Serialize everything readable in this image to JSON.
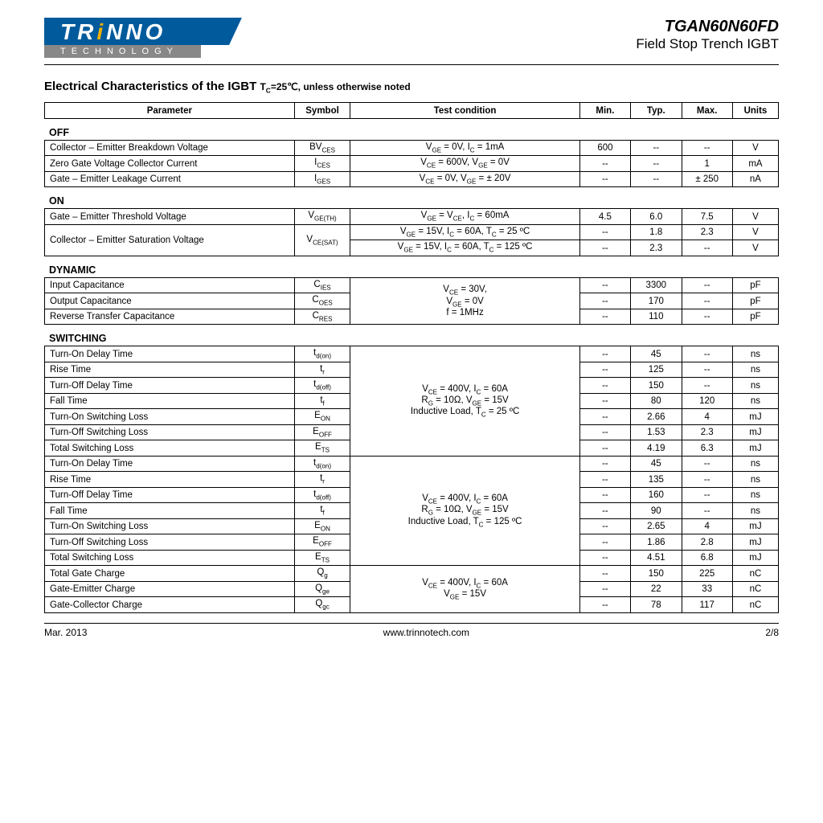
{
  "header": {
    "logo_main": "TRiNNO",
    "logo_sub": "TECHNOLOGY",
    "part_number": "TGAN60N60FD",
    "subtitle": "Field Stop Trench IGBT"
  },
  "section_title": "Electrical Characteristics of the IGBT",
  "section_condition": "T_C=25℃, unless otherwise noted",
  "columns": {
    "parameter": "Parameter",
    "symbol": "Symbol",
    "condition": "Test condition",
    "min": "Min.",
    "typ": "Typ.",
    "max": "Max.",
    "units": "Units"
  },
  "groups": {
    "off": {
      "label": "OFF",
      "rows": [
        {
          "param": "Collector – Emitter Breakdown Voltage",
          "sym": "BV",
          "sub": "CES",
          "cond": "V_GE = 0V, I_C = 1mA",
          "min": "600",
          "typ": "--",
          "max": "--",
          "unit": "V"
        },
        {
          "param": "Zero Gate Voltage Collector Current",
          "sym": "I",
          "sub": "CES",
          "cond": "V_CE = 600V, V_GE = 0V",
          "min": "--",
          "typ": "--",
          "max": "1",
          "unit": "mA"
        },
        {
          "param": "Gate – Emitter Leakage Current",
          "sym": "I",
          "sub": "GES",
          "cond": "V_CE = 0V, V_GE = ± 20V",
          "min": "--",
          "typ": "--",
          "max": "± 250",
          "unit": "nA"
        }
      ]
    },
    "on": {
      "label": "ON",
      "rows": [
        {
          "param": "Gate – Emitter Threshold Voltage",
          "sym": "V",
          "sub": "GE(TH)",
          "cond": "V_GE = V_CE, I_C = 60mA",
          "min": "4.5",
          "typ": "6.0",
          "max": "7.5",
          "unit": "V"
        },
        {
          "param": "Collector – Emitter Saturation Voltage",
          "sym": "V",
          "sub": "CE(SAT)",
          "cond": "V_GE = 15V, I_C = 60A, T_C = 25 ºC",
          "min": "--",
          "typ": "1.8",
          "max": "2.3",
          "unit": "V",
          "rowspan": 2
        },
        {
          "cond": "V_GE = 15V, I_C = 60A, T_C = 125 ºC",
          "min": "--",
          "typ": "2.3",
          "max": "--",
          "unit": "V"
        }
      ]
    },
    "dynamic": {
      "label": "DYNAMIC",
      "cond_block": "V_CE = 30V,\nV_GE = 0V\nf = 1MHz",
      "rows": [
        {
          "param": "Input Capacitance",
          "sym": "C",
          "sub": "IES",
          "min": "--",
          "typ": "3300",
          "max": "--",
          "unit": "pF"
        },
        {
          "param": "Output Capacitance",
          "sym": "C",
          "sub": "OES",
          "min": "--",
          "typ": "170",
          "max": "--",
          "unit": "pF"
        },
        {
          "param": "Reverse Transfer Capacitance",
          "sym": "C",
          "sub": "RES",
          "min": "--",
          "typ": "110",
          "max": "--",
          "unit": "pF"
        }
      ]
    },
    "switching": {
      "label": "SWITCHING",
      "block1_cond": "V_CE = 400V, I_C = 60A\nR_G = 10Ω, V_GE = 15V\nInductive Load, T_C = 25 ºC",
      "block1": [
        {
          "param": "Turn-On Delay Time",
          "sym": "t",
          "sub": "d(on)",
          "min": "--",
          "typ": "45",
          "max": "--",
          "unit": "ns"
        },
        {
          "param": "Rise Time",
          "sym": "t",
          "sub": "r",
          "min": "--",
          "typ": "125",
          "max": "--",
          "unit": "ns"
        },
        {
          "param": "Turn-Off Delay Time",
          "sym": "t",
          "sub": "d(off)",
          "min": "--",
          "typ": "150",
          "max": "--",
          "unit": "ns"
        },
        {
          "param": "Fall Time",
          "sym": "t",
          "sub": "f",
          "min": "--",
          "typ": "80",
          "max": "120",
          "unit": "ns"
        },
        {
          "param": "Turn-On Switching Loss",
          "sym": "E",
          "sub": "ON",
          "min": "--",
          "typ": "2.66",
          "max": "4",
          "unit": "mJ"
        },
        {
          "param": "Turn-Off Switching Loss",
          "sym": "E",
          "sub": "OFF",
          "min": "--",
          "typ": "1.53",
          "max": "2.3",
          "unit": "mJ"
        },
        {
          "param": "Total Switching Loss",
          "sym": "E",
          "sub": "TS",
          "min": "--",
          "typ": "4.19",
          "max": "6.3",
          "unit": "mJ"
        }
      ],
      "block2_cond": "V_CE = 400V, I_C = 60A\nR_G = 10Ω, V_GE = 15V\nInductive Load, T_C = 125 ºC",
      "block2": [
        {
          "param": "Turn-On Delay Time",
          "sym": "t",
          "sub": "d(on)",
          "min": "--",
          "typ": "45",
          "max": "--",
          "unit": "ns"
        },
        {
          "param": "Rise Time",
          "sym": "t",
          "sub": "r",
          "min": "--",
          "typ": "135",
          "max": "--",
          "unit": "ns"
        },
        {
          "param": "Turn-Off Delay Time",
          "sym": "t",
          "sub": "d(off)",
          "min": "--",
          "typ": "160",
          "max": "--",
          "unit": "ns"
        },
        {
          "param": "Fall Time",
          "sym": "t",
          "sub": "f",
          "min": "--",
          "typ": "90",
          "max": "--",
          "unit": "ns"
        },
        {
          "param": "Turn-On Switching Loss",
          "sym": "E",
          "sub": "ON",
          "min": "--",
          "typ": "2.65",
          "max": "4",
          "unit": "mJ"
        },
        {
          "param": "Turn-Off Switching Loss",
          "sym": "E",
          "sub": "OFF",
          "min": "--",
          "typ": "1.86",
          "max": "2.8",
          "unit": "mJ"
        },
        {
          "param": "Total Switching Loss",
          "sym": "E",
          "sub": "TS",
          "min": "--",
          "typ": "4.51",
          "max": "6.8",
          "unit": "mJ"
        }
      ],
      "block3_cond": "V_CE = 400V, I_C = 60A\nV_GE = 15V",
      "block3": [
        {
          "param": "Total Gate Charge",
          "sym": "Q",
          "sub": "g",
          "min": "--",
          "typ": "150",
          "max": "225",
          "unit": "nC"
        },
        {
          "param": "Gate-Emitter Charge",
          "sym": "Q",
          "sub": "ge",
          "min": "--",
          "typ": "22",
          "max": "33",
          "unit": "nC"
        },
        {
          "param": "Gate-Collector Charge",
          "sym": "Q",
          "sub": "gc",
          "min": "--",
          "typ": "78",
          "max": "117",
          "unit": "nC"
        }
      ]
    }
  },
  "footer": {
    "date": "Mar.  2013",
    "url": "www.trinnotech.com",
    "page": "2/8"
  }
}
